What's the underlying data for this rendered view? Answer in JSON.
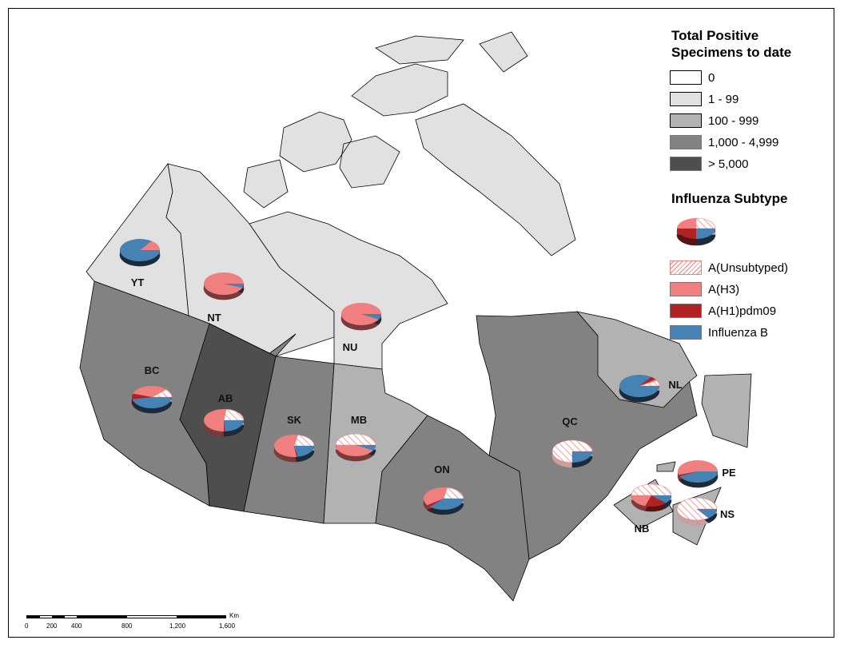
{
  "legend": {
    "total_title": "Total Positive Specimens to date",
    "total_title_line1": "Total Positive",
    "total_title_line2": "Specimens to date",
    "classes": [
      {
        "label": "0",
        "color": "#FFFFFF"
      },
      {
        "label": "1 - 99",
        "color": "#E1E1E1"
      },
      {
        "label": "100 - 999",
        "color": "#B2B2B2"
      },
      {
        "label": "1,000 - 4,999",
        "color": "#828282"
      },
      {
        "label": "> 5,000",
        "color": "#4E4E4E"
      }
    ],
    "subtype_title": "Influenza Subtype",
    "subtypes": [
      {
        "label": "A(Unsubtyped)",
        "color": "#F08080",
        "pattern": "hatched"
      },
      {
        "label": "A(H3)",
        "color": "#F08080"
      },
      {
        "label": "A(H1)pdm09",
        "color": "#B22222"
      },
      {
        "label": "Influenza B",
        "color": "#4682B4"
      }
    ]
  },
  "provinces": [
    {
      "code": "YT",
      "class": "1 - 99",
      "shares": [
        0,
        15,
        0,
        85
      ]
    },
    {
      "code": "NT",
      "class": "1 - 99",
      "shares": [
        0,
        94,
        0,
        6
      ]
    },
    {
      "code": "NU",
      "class": "1 - 99",
      "shares": [
        0,
        92,
        0,
        8
      ]
    },
    {
      "code": "BC",
      "class": "1,000 - 4,999",
      "shares": [
        12,
        33,
        8,
        47
      ]
    },
    {
      "code": "AB",
      "class": "> 5,000",
      "shares": [
        23,
        52,
        1,
        24
      ]
    },
    {
      "code": "SK",
      "class": "1,000 - 4,999",
      "shares": [
        22,
        55,
        1,
        22
      ]
    },
    {
      "code": "MB",
      "class": "100 - 999",
      "shares": [
        50,
        42,
        0,
        8
      ]
    },
    {
      "code": "ON",
      "class": "1,000 - 4,999",
      "shares": [
        22,
        38,
        3,
        37
      ]
    },
    {
      "code": "QC",
      "class": "1,000 - 4,999",
      "shares": [
        75,
        0,
        0,
        25
      ]
    },
    {
      "code": "NL",
      "class": "100 - 999",
      "shares": [
        8,
        2,
        5,
        85
      ]
    },
    {
      "code": "PE",
      "class": "100 - 999",
      "shares": [
        0,
        55,
        2,
        43
      ]
    },
    {
      "code": "NB",
      "class": "100 - 999",
      "shares": [
        50,
        20,
        18,
        12
      ]
    },
    {
      "code": "NS",
      "class": "100 - 999",
      "shares": [
        85,
        0,
        0,
        15
      ]
    }
  ],
  "scale_bar": {
    "unit": "Km",
    "ticks": [
      "0",
      "200",
      "400",
      "800",
      "1,200",
      "1,600"
    ]
  }
}
